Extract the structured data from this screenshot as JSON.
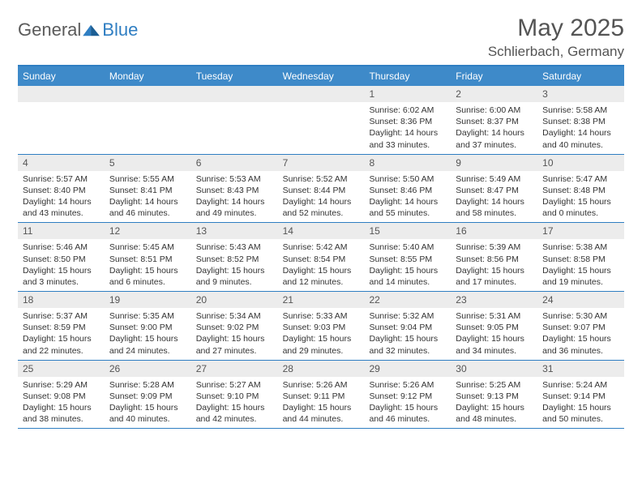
{
  "logo": {
    "word1": "General",
    "word2": "Blue"
  },
  "title": "May 2025",
  "location": "Schlierbach, Germany",
  "daysOfWeek": [
    "Sunday",
    "Monday",
    "Tuesday",
    "Wednesday",
    "Thursday",
    "Friday",
    "Saturday"
  ],
  "colors": {
    "header_bg": "#3e8ac9",
    "border": "#2f7ec2",
    "daynum_bg": "#ececec",
    "text": "#222",
    "muted": "#555"
  },
  "startWeekday": 4,
  "days": [
    {
      "n": 1,
      "sunrise": "6:02 AM",
      "sunset": "8:36 PM",
      "daylight_h": 14,
      "daylight_m": 33
    },
    {
      "n": 2,
      "sunrise": "6:00 AM",
      "sunset": "8:37 PM",
      "daylight_h": 14,
      "daylight_m": 37
    },
    {
      "n": 3,
      "sunrise": "5:58 AM",
      "sunset": "8:38 PM",
      "daylight_h": 14,
      "daylight_m": 40
    },
    {
      "n": 4,
      "sunrise": "5:57 AM",
      "sunset": "8:40 PM",
      "daylight_h": 14,
      "daylight_m": 43
    },
    {
      "n": 5,
      "sunrise": "5:55 AM",
      "sunset": "8:41 PM",
      "daylight_h": 14,
      "daylight_m": 46
    },
    {
      "n": 6,
      "sunrise": "5:53 AM",
      "sunset": "8:43 PM",
      "daylight_h": 14,
      "daylight_m": 49
    },
    {
      "n": 7,
      "sunrise": "5:52 AM",
      "sunset": "8:44 PM",
      "daylight_h": 14,
      "daylight_m": 52
    },
    {
      "n": 8,
      "sunrise": "5:50 AM",
      "sunset": "8:46 PM",
      "daylight_h": 14,
      "daylight_m": 55
    },
    {
      "n": 9,
      "sunrise": "5:49 AM",
      "sunset": "8:47 PM",
      "daylight_h": 14,
      "daylight_m": 58
    },
    {
      "n": 10,
      "sunrise": "5:47 AM",
      "sunset": "8:48 PM",
      "daylight_h": 15,
      "daylight_m": 0
    },
    {
      "n": 11,
      "sunrise": "5:46 AM",
      "sunset": "8:50 PM",
      "daylight_h": 15,
      "daylight_m": 3
    },
    {
      "n": 12,
      "sunrise": "5:45 AM",
      "sunset": "8:51 PM",
      "daylight_h": 15,
      "daylight_m": 6
    },
    {
      "n": 13,
      "sunrise": "5:43 AM",
      "sunset": "8:52 PM",
      "daylight_h": 15,
      "daylight_m": 9
    },
    {
      "n": 14,
      "sunrise": "5:42 AM",
      "sunset": "8:54 PM",
      "daylight_h": 15,
      "daylight_m": 12
    },
    {
      "n": 15,
      "sunrise": "5:40 AM",
      "sunset": "8:55 PM",
      "daylight_h": 15,
      "daylight_m": 14
    },
    {
      "n": 16,
      "sunrise": "5:39 AM",
      "sunset": "8:56 PM",
      "daylight_h": 15,
      "daylight_m": 17
    },
    {
      "n": 17,
      "sunrise": "5:38 AM",
      "sunset": "8:58 PM",
      "daylight_h": 15,
      "daylight_m": 19
    },
    {
      "n": 18,
      "sunrise": "5:37 AM",
      "sunset": "8:59 PM",
      "daylight_h": 15,
      "daylight_m": 22
    },
    {
      "n": 19,
      "sunrise": "5:35 AM",
      "sunset": "9:00 PM",
      "daylight_h": 15,
      "daylight_m": 24
    },
    {
      "n": 20,
      "sunrise": "5:34 AM",
      "sunset": "9:02 PM",
      "daylight_h": 15,
      "daylight_m": 27
    },
    {
      "n": 21,
      "sunrise": "5:33 AM",
      "sunset": "9:03 PM",
      "daylight_h": 15,
      "daylight_m": 29
    },
    {
      "n": 22,
      "sunrise": "5:32 AM",
      "sunset": "9:04 PM",
      "daylight_h": 15,
      "daylight_m": 32
    },
    {
      "n": 23,
      "sunrise": "5:31 AM",
      "sunset": "9:05 PM",
      "daylight_h": 15,
      "daylight_m": 34
    },
    {
      "n": 24,
      "sunrise": "5:30 AM",
      "sunset": "9:07 PM",
      "daylight_h": 15,
      "daylight_m": 36
    },
    {
      "n": 25,
      "sunrise": "5:29 AM",
      "sunset": "9:08 PM",
      "daylight_h": 15,
      "daylight_m": 38
    },
    {
      "n": 26,
      "sunrise": "5:28 AM",
      "sunset": "9:09 PM",
      "daylight_h": 15,
      "daylight_m": 40
    },
    {
      "n": 27,
      "sunrise": "5:27 AM",
      "sunset": "9:10 PM",
      "daylight_h": 15,
      "daylight_m": 42
    },
    {
      "n": 28,
      "sunrise": "5:26 AM",
      "sunset": "9:11 PM",
      "daylight_h": 15,
      "daylight_m": 44
    },
    {
      "n": 29,
      "sunrise": "5:26 AM",
      "sunset": "9:12 PM",
      "daylight_h": 15,
      "daylight_m": 46
    },
    {
      "n": 30,
      "sunrise": "5:25 AM",
      "sunset": "9:13 PM",
      "daylight_h": 15,
      "daylight_m": 48
    },
    {
      "n": 31,
      "sunrise": "5:24 AM",
      "sunset": "9:14 PM",
      "daylight_h": 15,
      "daylight_m": 50
    }
  ]
}
